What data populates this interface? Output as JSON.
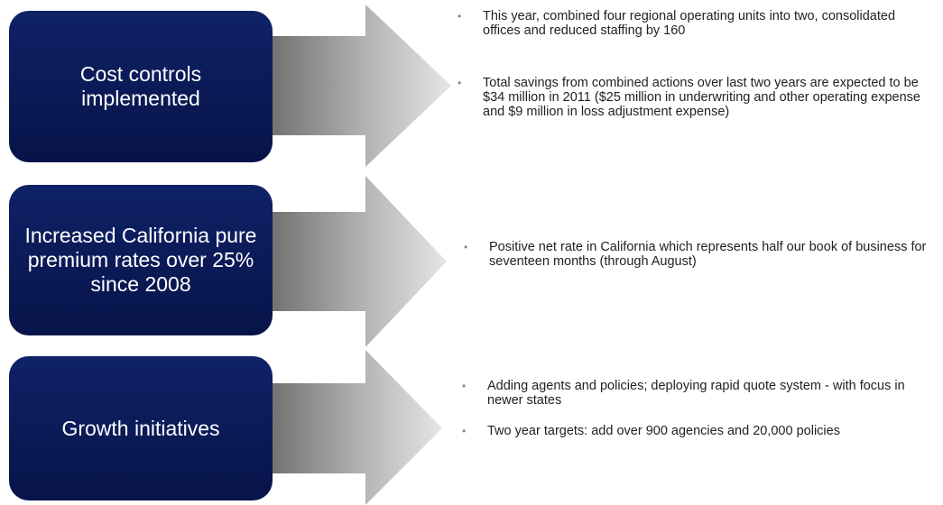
{
  "rows": [
    {
      "label": "Cost controls implemented",
      "bullets": [
        "This year, combined four regional operating units into two, consolidated offices and reduced staffing by 160",
        "Total savings from combined actions over last two years are expected to be $34 million in 2011 ($25 million in underwriting and other operating expense and $9 million in loss adjustment expense)"
      ]
    },
    {
      "label": "Increased California pure premium rates over 25% since 2008",
      "bullets": [
        "Positive net rate in California which represents half our book of business for seventeen months (through August)"
      ]
    },
    {
      "label": "Growth initiatives",
      "bullets": [
        "Adding agents and policies; deploying rapid quote system - with focus in newer states",
        "Two year targets: add over 900 agencies and 20,000 policies"
      ]
    }
  ]
}
